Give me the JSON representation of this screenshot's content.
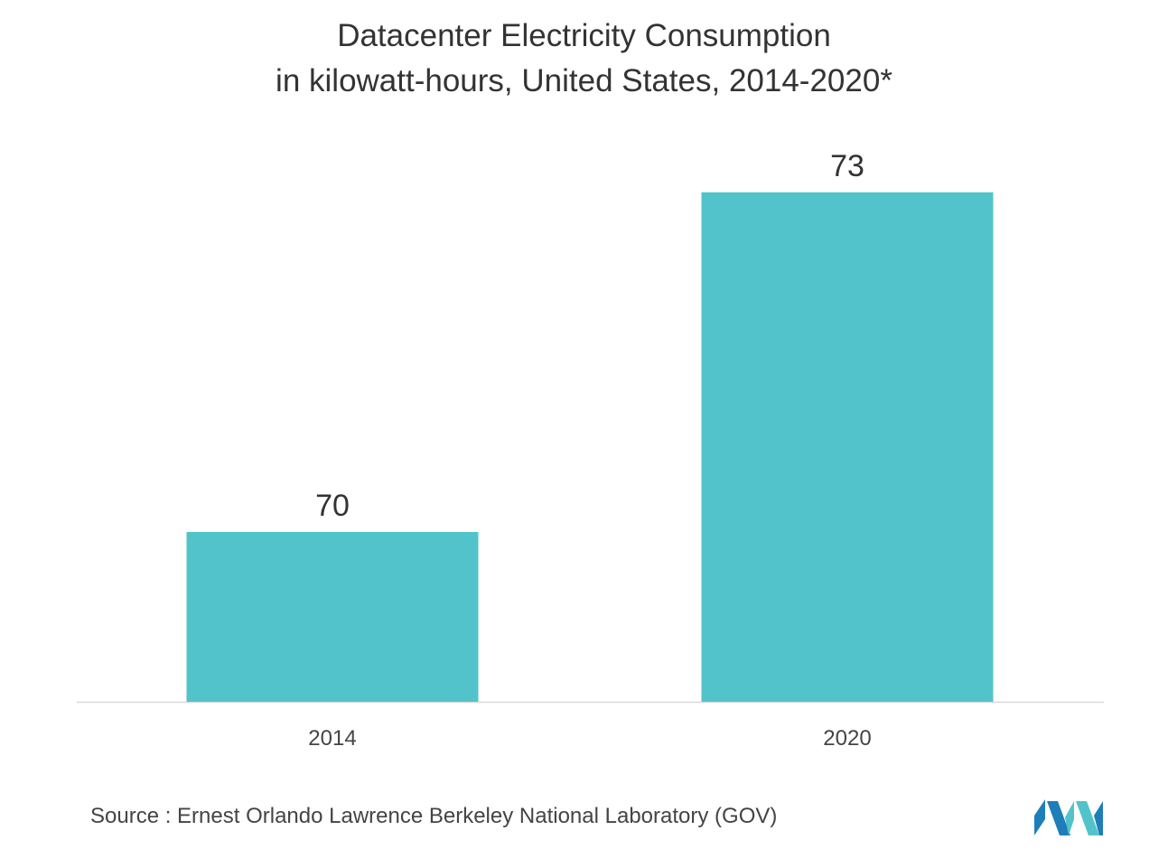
{
  "chart_data": {
    "type": "bar",
    "title": "Datacenter Electricity Consumption",
    "subtitle": "in kilowatt-hours, United States, 2014-2020*",
    "categories": [
      "2014",
      "2020"
    ],
    "values": [
      70,
      73
    ],
    "value_labels": [
      "70",
      "73"
    ],
    "bar_color": "#52C3CA",
    "grid": false,
    "legend": "none"
  },
  "source": "Source : Ernest Orlando Lawrence Berkeley National Laboratory (GOV)",
  "logo": {
    "icon": "mordor-intelligence-logo",
    "colors": [
      "#1E7EB8",
      "#52C3CA"
    ]
  }
}
